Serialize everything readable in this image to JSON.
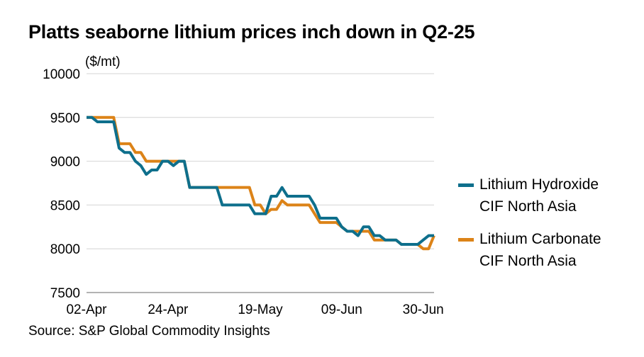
{
  "chart_data": {
    "type": "line",
    "title": "Platts seaborne lithium prices inch down in Q2-25",
    "ylabel": "($/mt)",
    "xlabel": "",
    "ylim": [
      7500,
      10000
    ],
    "yticks": [
      "10000",
      "9500",
      "9000",
      "8500",
      "8000",
      "7500"
    ],
    "ytick_values": [
      10000,
      9500,
      9000,
      8500,
      8000,
      7500
    ],
    "xticks": [
      {
        "label": "02-Apr",
        "index": 0
      },
      {
        "label": "24-Apr",
        "index": 15
      },
      {
        "label": "19-May",
        "index": 32
      },
      {
        "label": "09-Jun",
        "index": 47
      },
      {
        "label": "30-Jun",
        "index": 62
      }
    ],
    "grid": true,
    "legend_position": "right",
    "series": [
      {
        "name": "Lithium Hydroxide CIF North Asia",
        "name_line1": "Lithium Hydroxide",
        "name_line2": "CIF North Asia",
        "color": "#0e6f8c",
        "values": [
          9500,
          9500,
          9450,
          9450,
          9450,
          9450,
          9150,
          9100,
          9100,
          9000,
          8950,
          8850,
          8900,
          8900,
          9000,
          9000,
          8950,
          9000,
          9000,
          8700,
          8700,
          8700,
          8700,
          8700,
          8700,
          8500,
          8500,
          8500,
          8500,
          8500,
          8500,
          8400,
          8400,
          8400,
          8600,
          8600,
          8700,
          8600,
          8600,
          8600,
          8600,
          8600,
          8500,
          8350,
          8350,
          8350,
          8350,
          8250,
          8200,
          8200,
          8150,
          8250,
          8250,
          8150,
          8150,
          8100,
          8100,
          8100,
          8050,
          8050,
          8050,
          8050,
          8100,
          8150,
          8150
        ]
      },
      {
        "name": "Lithium Carbonate CIF North Asia",
        "name_line1": "Lithium Carbonate",
        "name_line2": "CIF North Asia",
        "color": "#dc8318",
        "values": [
          9500,
          9500,
          9500,
          9500,
          9500,
          9500,
          9200,
          9200,
          9200,
          9100,
          9100,
          9000,
          9000,
          9000,
          9000,
          9000,
          9000,
          9000,
          9000,
          8700,
          8700,
          8700,
          8700,
          8700,
          8700,
          8700,
          8700,
          8700,
          8700,
          8700,
          8700,
          8500,
          8500,
          8400,
          8450,
          8450,
          8550,
          8500,
          8500,
          8500,
          8500,
          8500,
          8400,
          8300,
          8300,
          8300,
          8300,
          8250,
          8200,
          8200,
          8200,
          8200,
          8200,
          8100,
          8100,
          8100,
          8100,
          8100,
          8050,
          8050,
          8050,
          8050,
          8000,
          8000,
          8150
        ]
      }
    ]
  },
  "source": "Source: S&P Global Commodity Insights"
}
